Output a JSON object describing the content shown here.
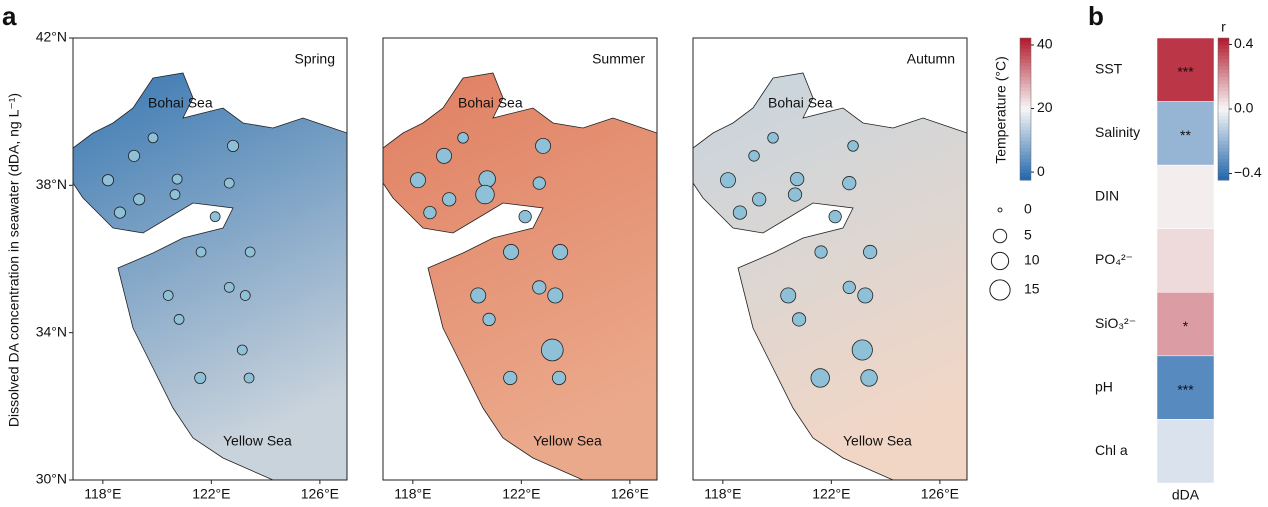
{
  "panel_labels": [
    "a",
    "b"
  ],
  "chart_data": [
    {
      "type": "bubble-map",
      "title": "Spring",
      "ylabel": "Dissolved  DA concentration in seawater (dDA, ng L⁻¹)",
      "annotations": [
        "Bohai Sea",
        "Yellow Sea"
      ],
      "sea_colors": [
        "#3a78b2",
        "#c9d3dc"
      ],
      "color": "#8ec1d8",
      "xlim": [
        116.9,
        127
      ],
      "ylim": [
        30,
        42
      ],
      "xticks": [
        {
          "value": 118,
          "label": "118°E"
        },
        {
          "value": 122,
          "label": "122°E"
        },
        {
          "value": 126,
          "label": "126°E"
        }
      ],
      "yticks": [
        {
          "value": 30,
          "label": "30°N"
        },
        {
          "value": 34,
          "label": "34°N"
        },
        {
          "value": 38,
          "label": "38°N"
        },
        {
          "value": 42,
          "label": "42°N"
        }
      ],
      "x": [
        119.15,
        119.85,
        122.8,
        118.19,
        119.34,
        120.74,
        120.66,
        122.66,
        118.63,
        122.14,
        121.62,
        123.43,
        120.41,
        122.66,
        123.25,
        120.81,
        123.14,
        121.59,
        123.39
      ],
      "y": [
        38.8,
        39.29,
        39.07,
        38.14,
        37.62,
        38.17,
        37.75,
        38.06,
        37.26,
        37.15,
        36.19,
        36.19,
        35.01,
        35.23,
        35.01,
        34.36,
        33.53,
        32.77,
        32.77
      ],
      "sizes": [
        3,
        2,
        3,
        3,
        3,
        2,
        2,
        2,
        3,
        2,
        2,
        2,
        2,
        2,
        2,
        2,
        2,
        3,
        2
      ]
    },
    {
      "type": "bubble-map",
      "title": "Summer",
      "annotations": [
        "Bohai Sea",
        "Yellow Sea"
      ],
      "sea_colors": [
        "#e07f62",
        "#eba98b"
      ],
      "color": "#8ec1d8",
      "xlim": [
        116.9,
        127
      ],
      "ylim": [
        30,
        42
      ],
      "xticks": [
        {
          "value": 118,
          "label": "118°E"
        },
        {
          "value": 122,
          "label": "122°E"
        },
        {
          "value": 126,
          "label": "126°E"
        }
      ],
      "x": [
        119.15,
        119.85,
        122.8,
        118.19,
        119.34,
        120.74,
        120.66,
        122.66,
        118.63,
        122.14,
        121.62,
        123.43,
        120.41,
        122.66,
        123.25,
        120.81,
        123.14,
        121.59,
        123.39
      ],
      "y": [
        38.8,
        39.29,
        39.07,
        38.14,
        37.62,
        38.17,
        37.75,
        38.06,
        37.26,
        37.15,
        36.19,
        36.19,
        35.01,
        35.23,
        35.01,
        34.36,
        33.53,
        32.77,
        32.77
      ],
      "sizes": [
        7,
        2.5,
        7,
        7,
        5,
        9,
        12,
        4,
        4,
        4,
        7,
        7,
        7,
        5,
        7,
        4,
        18,
        5,
        5
      ]
    },
    {
      "type": "bubble-map",
      "title": "Autumn",
      "annotations": [
        "Bohai Sea",
        "Yellow Sea"
      ],
      "sea_colors": [
        "#c6d5df",
        "#f1d6c6"
      ],
      "color": "#8ec1d8",
      "xlim": [
        116.9,
        127
      ],
      "ylim": [
        30,
        42
      ],
      "xticks": [
        {
          "value": 118,
          "label": "118°E"
        },
        {
          "value": 122,
          "label": "122°E"
        },
        {
          "value": 126,
          "label": "126°E"
        }
      ],
      "x": [
        119.15,
        119.85,
        122.8,
        118.19,
        119.34,
        120.74,
        120.66,
        122.66,
        118.63,
        122.14,
        121.62,
        123.43,
        120.41,
        122.66,
        123.25,
        120.81,
        123.14,
        121.59,
        123.39
      ],
      "y": [
        38.8,
        39.29,
        39.07,
        38.14,
        37.62,
        38.17,
        37.75,
        38.06,
        37.26,
        37.15,
        36.19,
        36.19,
        35.01,
        35.23,
        35.01,
        34.36,
        33.53,
        32.77,
        32.77
      ],
      "sizes": [
        2.5,
        2.5,
        2.5,
        7,
        5,
        5,
        5,
        5,
        5,
        4,
        4,
        5,
        7,
        4,
        7,
        5,
        15,
        12,
        9
      ]
    },
    {
      "type": "colorbar",
      "title": "Temperature (°C)",
      "colormap": [
        "#2166ac",
        "#f7f7f7",
        "#b2182b"
      ],
      "ylim": [
        -2.5,
        42.2
      ],
      "yticks": [
        0,
        20,
        40
      ]
    },
    {
      "type": "size-legend",
      "values": [
        0,
        5,
        10,
        15
      ]
    },
    {
      "type": "heatmap",
      "xlabel": "dDA",
      "categories": [
        "SST",
        "Salinity",
        "DIN",
        "PO₄²⁻",
        "SiO₃²⁻",
        "pH",
        "Chl a"
      ],
      "values": [
        0.38,
        -0.2,
        0.02,
        0.06,
        0.18,
        -0.33,
        -0.06
      ],
      "significance": [
        "***",
        "**",
        null,
        null,
        "*",
        "***",
        null
      ],
      "colorbar_title": "r",
      "colormap": [
        "#2166ac",
        "#f7f7f7",
        "#b2182b"
      ],
      "ylim": [
        -0.44,
        0.44
      ],
      "yticks": [
        {
          "value": 0.4,
          "label": "0.4"
        },
        {
          "value": 0,
          "label": "0.0"
        },
        {
          "value": -0.4,
          "label": "−0.4"
        }
      ]
    }
  ]
}
